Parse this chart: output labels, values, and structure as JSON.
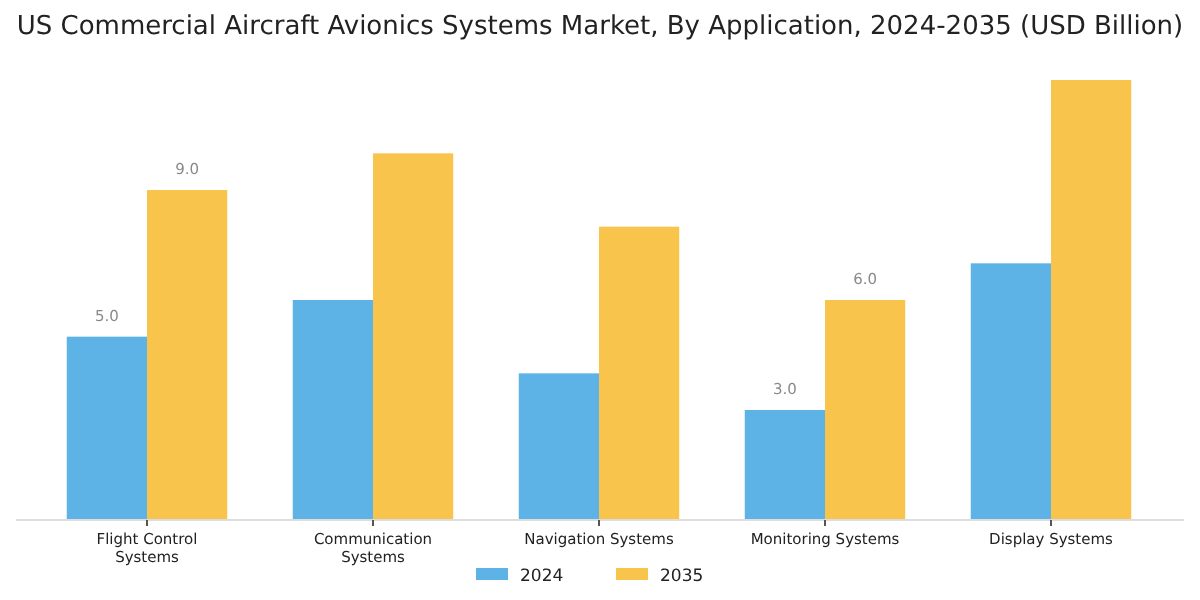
{
  "chart_data": {
    "type": "bar",
    "title": "US Commercial Aircraft Avionics Systems Market, By Application, 2024-2035 (USD Billion)",
    "categories": [
      "Flight Control Systems",
      "Communication Systems",
      "Navigation Systems",
      "Monitoring Systems",
      "Display Systems"
    ],
    "series": [
      {
        "name": "2024",
        "color": "#5db3e6",
        "values": [
          5.0,
          6.0,
          4.0,
          3.0,
          7.0
        ],
        "value_labels": [
          "5.0",
          null,
          null,
          "3.0",
          null
        ]
      },
      {
        "name": "2035",
        "color": "#f9c44b",
        "values": [
          9.0,
          10.0,
          8.0,
          6.0,
          12.0
        ],
        "value_labels": [
          "9.0",
          null,
          null,
          "6.0",
          null
        ]
      }
    ],
    "legend": "bottom"
  }
}
